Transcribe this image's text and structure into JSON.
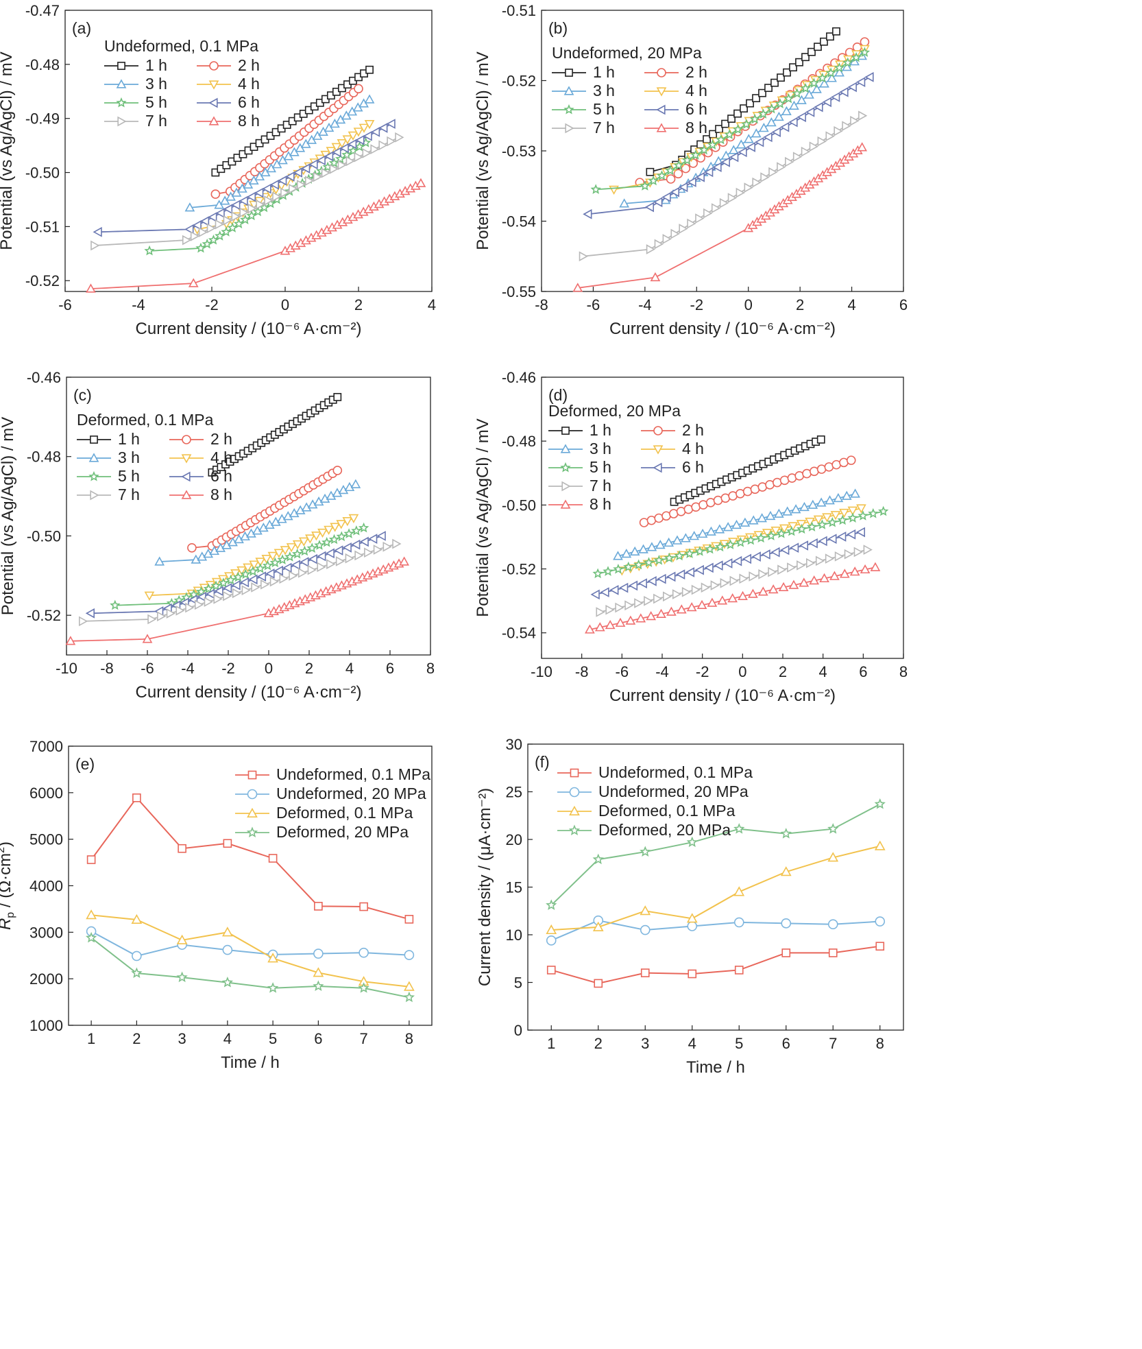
{
  "colors": {
    "1 h": "#222222",
    "2 h": "#e8665a",
    "3 h": "#6aa9d8",
    "4 h": "#f2c24d",
    "5 h": "#6fbf7a",
    "6 h": "#6a78b2",
    "7 h": "#b8b8b8",
    "8 h": "#ef6f6f",
    "Undeformed, 0.1 MPa": "#e8665a",
    "Undeformed, 20 MPa": "#7fb6de",
    "Deformed, 0.1 MPa": "#f2c24d",
    "Deformed, 20 MPa": "#7fc08a"
  },
  "markers": {
    "1 h": "square",
    "2 h": "circle",
    "3 h": "triangle-up",
    "4 h": "triangle-down",
    "5 h": "star",
    "6 h": "triangle-left",
    "7 h": "triangle-right",
    "8 h": "triangle-up",
    "Undeformed, 0.1 MPa": "square",
    "Undeformed, 20 MPa": "circle",
    "Deformed, 0.1 MPa": "triangle-up",
    "Deformed, 20 MPa": "star"
  },
  "chart_data": [
    {
      "panel": "(a)",
      "type": "line",
      "legend_title": "Undeformed, 0.1 MPa",
      "xlabel": "Current density / (10⁻⁶ A·cm⁻²)",
      "ylabel": "Potential (vs Ag/AgCl) / mV",
      "xlim": [
        -6,
        4
      ],
      "ylim": [
        -0.522,
        -0.47
      ],
      "xticks": [
        -6,
        -4,
        -2,
        0,
        2,
        4
      ],
      "xtick_labels": [
        "-6",
        "-4",
        "-2",
        "0",
        "2",
        "4"
      ],
      "yticks": [
        -0.52,
        -0.51,
        -0.5,
        -0.49,
        -0.48,
        -0.47
      ],
      "ytick_labels": [
        "-0.52",
        "-0.51",
        "-0.50",
        "-0.49",
        "-0.48",
        "-0.47"
      ],
      "series": [
        {
          "name": "1 h",
          "x": [
            -1.9,
            2.3
          ],
          "y": [
            -0.5,
            -0.481
          ]
        },
        {
          "name": "2 h",
          "x": [
            -1.9,
            -1.5,
            2.0
          ],
          "y": [
            -0.504,
            -0.5035,
            -0.4845
          ]
        },
        {
          "name": "3 h",
          "x": [
            -2.6,
            -1.8,
            2.3
          ],
          "y": [
            -0.5065,
            -0.506,
            -0.4865
          ]
        },
        {
          "name": "4 h",
          "x": [
            -2.4,
            -1.6,
            2.3
          ],
          "y": [
            -0.5105,
            -0.5095,
            -0.491
          ]
        },
        {
          "name": "5 h",
          "x": [
            -3.7,
            -2.3,
            2.2
          ],
          "y": [
            -0.5145,
            -0.514,
            -0.4945
          ]
        },
        {
          "name": "6 h",
          "x": [
            -5.1,
            -2.6,
            2.9
          ],
          "y": [
            -0.511,
            -0.5105,
            -0.491
          ]
        },
        {
          "name": "7 h",
          "x": [
            -5.2,
            -2.7,
            3.1
          ],
          "y": [
            -0.5135,
            -0.5125,
            -0.4935
          ]
        },
        {
          "name": "8 h",
          "x": [
            -5.3,
            -2.5,
            0,
            3.7
          ],
          "y": [
            -0.5215,
            -0.5205,
            -0.5145,
            -0.502
          ]
        }
      ]
    },
    {
      "panel": "(b)",
      "type": "line",
      "legend_title": "Undeformed, 20 MPa",
      "xlabel": "Current density / (10⁻⁶ A·cm⁻²)",
      "ylabel": "Potential (vs Ag/AgCl) / mV",
      "xlim": [
        -8,
        6
      ],
      "ylim": [
        -0.55,
        -0.51
      ],
      "xticks": [
        -8,
        -6,
        -4,
        -2,
        0,
        2,
        4,
        6
      ],
      "xtick_labels": [
        "-8",
        "-6",
        "-4",
        "-2",
        "0",
        "2",
        "4",
        "6"
      ],
      "yticks": [
        -0.55,
        -0.54,
        -0.53,
        -0.52,
        -0.51
      ],
      "ytick_labels": [
        "-0.55",
        "-0.54",
        "-0.53",
        "-0.52",
        "-0.51"
      ],
      "series": [
        {
          "name": "1 h",
          "x": [
            -3.8,
            -2.8,
            3.4
          ],
          "y": [
            -0.533,
            -0.532,
            -0.513
          ]
        },
        {
          "name": "2 h",
          "x": [
            -4.2,
            -3.0,
            4.5
          ],
          "y": [
            -0.5345,
            -0.534,
            -0.5145
          ]
        },
        {
          "name": "3 h",
          "x": [
            -4.8,
            -3.2,
            4.4
          ],
          "y": [
            -0.5375,
            -0.537,
            -0.5165
          ]
        },
        {
          "name": "4 h",
          "x": [
            -5.2,
            -3.8,
            4.5
          ],
          "y": [
            -0.5355,
            -0.5345,
            -0.5155
          ]
        },
        {
          "name": "5 h",
          "x": [
            -5.9,
            -4.0,
            4.5
          ],
          "y": [
            -0.5355,
            -0.535,
            -0.516
          ]
        },
        {
          "name": "6 h",
          "x": [
            -6.2,
            -3.8,
            4.7
          ],
          "y": [
            -0.539,
            -0.538,
            -0.5195
          ]
        },
        {
          "name": "7 h",
          "x": [
            -6.4,
            -3.8,
            4.4
          ],
          "y": [
            -0.545,
            -0.544,
            -0.525
          ]
        },
        {
          "name": "8 h",
          "x": [
            -6.6,
            -3.6,
            0,
            4.4
          ],
          "y": [
            -0.5495,
            -0.548,
            -0.541,
            -0.5295
          ]
        }
      ]
    },
    {
      "panel": "(c)",
      "type": "line",
      "legend_title": "Deformed, 0.1 MPa",
      "xlabel": "Current density / (10⁻⁶ A·cm⁻²)",
      "ylabel": "Potential (vs Ag/AgCl) / mV",
      "xlim": [
        -10,
        8
      ],
      "ylim": [
        -0.53,
        -0.46
      ],
      "xticks": [
        -10,
        -8,
        -6,
        -4,
        -2,
        0,
        2,
        4,
        6,
        8
      ],
      "xtick_labels": [
        "-10",
        "-8",
        "-6",
        "-4",
        "-2",
        "0",
        "2",
        "4",
        "6",
        "8"
      ],
      "yticks": [
        -0.52,
        -0.5,
        -0.48,
        -0.46
      ],
      "ytick_labels": [
        "-0.52",
        "-0.50",
        "-0.48",
        "-0.46"
      ],
      "series": [
        {
          "name": "1 h",
          "x": [
            -2.8,
            3.4
          ],
          "y": [
            -0.484,
            -0.465
          ]
        },
        {
          "name": "2 h",
          "x": [
            -3.8,
            -2.8,
            3.4
          ],
          "y": [
            -0.503,
            -0.5025,
            -0.4835
          ]
        },
        {
          "name": "3 h",
          "x": [
            -5.4,
            -3.6,
            4.3
          ],
          "y": [
            -0.5065,
            -0.506,
            -0.487
          ]
        },
        {
          "name": "4 h",
          "x": [
            -5.9,
            -3.8,
            4.2
          ],
          "y": [
            -0.515,
            -0.5145,
            -0.4955
          ]
        },
        {
          "name": "5 h",
          "x": [
            -7.6,
            -4.8,
            4.7
          ],
          "y": [
            -0.5175,
            -0.517,
            -0.498
          ]
        },
        {
          "name": "6 h",
          "x": [
            -8.8,
            -5.4,
            5.6
          ],
          "y": [
            -0.5195,
            -0.519,
            -0.5
          ]
        },
        {
          "name": "7 h",
          "x": [
            -9.2,
            -5.8,
            6.3
          ],
          "y": [
            -0.5215,
            -0.521,
            -0.502
          ]
        },
        {
          "name": "8 h",
          "x": [
            -9.8,
            -6.0,
            0,
            6.7
          ],
          "y": [
            -0.5265,
            -0.526,
            -0.5195,
            -0.5065
          ]
        }
      ]
    },
    {
      "panel": "(d)",
      "type": "line",
      "legend_title": "Deformed, 20 MPa",
      "xlabel": "Current density / (10⁻⁶ A·cm⁻²)",
      "ylabel": "Potential (vs Ag/AgCl) / mV",
      "xlim": [
        -10,
        8
      ],
      "ylim": [
        -0.548,
        -0.46
      ],
      "xticks": [
        -10,
        -8,
        -6,
        -4,
        -2,
        0,
        2,
        4,
        6,
        8
      ],
      "xtick_labels": [
        "-10",
        "-8",
        "-6",
        "-4",
        "-2",
        "0",
        "2",
        "4",
        "6",
        "8"
      ],
      "yticks": [
        -0.54,
        -0.52,
        -0.5,
        -0.48,
        -0.46
      ],
      "ytick_labels": [
        "-0.54",
        "-0.52",
        "-0.50",
        "-0.48",
        "-0.46"
      ],
      "series": [
        {
          "name": "1 h",
          "x": [
            -3.4,
            3.9
          ],
          "y": [
            -0.499,
            -0.4795
          ]
        },
        {
          "name": "2 h",
          "x": [
            -4.9,
            5.4
          ],
          "y": [
            -0.5055,
            -0.486
          ]
        },
        {
          "name": "3 h",
          "x": [
            -6.2,
            5.6
          ],
          "y": [
            -0.516,
            -0.4965
          ]
        },
        {
          "name": "4 h",
          "x": [
            -6.0,
            5.9
          ],
          "y": [
            -0.5205,
            -0.501
          ]
        },
        {
          "name": "5 h",
          "x": [
            -7.2,
            7.0
          ],
          "y": [
            -0.5215,
            -0.502
          ]
        },
        {
          "name": "6 h",
          "x": [
            -7.3,
            5.9
          ],
          "y": [
            -0.528,
            -0.5085
          ]
        },
        {
          "name": "7 h",
          "x": [
            -7.1,
            6.2
          ],
          "y": [
            -0.5335,
            -0.514
          ]
        },
        {
          "name": "8 h",
          "x": [
            -7.6,
            6.6
          ],
          "y": [
            -0.539,
            -0.5195
          ]
        }
      ]
    },
    {
      "panel": "(e)",
      "type": "line",
      "xlabel": "Time / h",
      "ylabel": "R",
      "ylabel_sub": "p",
      "ylabel_unit": " / (Ω·cm",
      "ylabel_sup": "2",
      "ylabel_close": ")",
      "xlim": [
        0.5,
        8.5
      ],
      "ylim": [
        1000,
        7000
      ],
      "xticks": [
        1,
        2,
        3,
        4,
        5,
        6,
        7,
        8
      ],
      "xtick_labels": [
        "1",
        "2",
        "3",
        "4",
        "5",
        "6",
        "7",
        "8"
      ],
      "yticks": [
        1000,
        2000,
        3000,
        4000,
        5000,
        6000,
        7000
      ],
      "ytick_labels": [
        "1000",
        "2000",
        "3000",
        "4000",
        "5000",
        "6000",
        "7000"
      ],
      "categories": [
        1,
        2,
        3,
        4,
        5,
        6,
        7,
        8
      ],
      "series": [
        {
          "name": "Undeformed, 0.1 MPa",
          "values": [
            4560,
            5890,
            4800,
            4910,
            4590,
            3560,
            3550,
            3280
          ]
        },
        {
          "name": "Undeformed, 20 MPa",
          "values": [
            3020,
            2490,
            2730,
            2620,
            2520,
            2540,
            2560,
            2510
          ]
        },
        {
          "name": "Deformed, 0.1 MPa",
          "values": [
            3370,
            3270,
            2830,
            3000,
            2440,
            2130,
            1940,
            1830
          ]
        },
        {
          "name": "Deformed, 20 MPa",
          "values": [
            2880,
            2120,
            2030,
            1920,
            1800,
            1840,
            1800,
            1600
          ]
        }
      ]
    },
    {
      "panel": "(f)",
      "type": "line",
      "xlabel": "Time / h",
      "ylabel": "Current density / (μA·cm⁻²)",
      "xlim": [
        0.5,
        8.5
      ],
      "ylim": [
        0,
        30
      ],
      "xticks": [
        1,
        2,
        3,
        4,
        5,
        6,
        7,
        8
      ],
      "xtick_labels": [
        "1",
        "2",
        "3",
        "4",
        "5",
        "6",
        "7",
        "8"
      ],
      "yticks": [
        0,
        5,
        10,
        15,
        20,
        25,
        30
      ],
      "ytick_labels": [
        "0",
        "5",
        "10",
        "15",
        "20",
        "25",
        "30"
      ],
      "categories": [
        1,
        2,
        3,
        4,
        5,
        6,
        7,
        8
      ],
      "series": [
        {
          "name": "Undeformed, 0.1 MPa",
          "values": [
            6.3,
            4.9,
            6.0,
            5.9,
            6.3,
            8.1,
            8.1,
            8.8
          ]
        },
        {
          "name": "Undeformed, 20 MPa",
          "values": [
            9.4,
            11.5,
            10.5,
            10.9,
            11.3,
            11.2,
            11.1,
            11.4
          ]
        },
        {
          "name": "Deformed, 0.1 MPa",
          "values": [
            10.5,
            10.8,
            12.5,
            11.7,
            14.5,
            16.6,
            18.1,
            19.3
          ]
        },
        {
          "name": "Deformed, 20 MPa",
          "values": [
            13.1,
            17.9,
            18.7,
            19.7,
            21.1,
            20.6,
            21.1,
            23.7
          ]
        }
      ]
    }
  ]
}
